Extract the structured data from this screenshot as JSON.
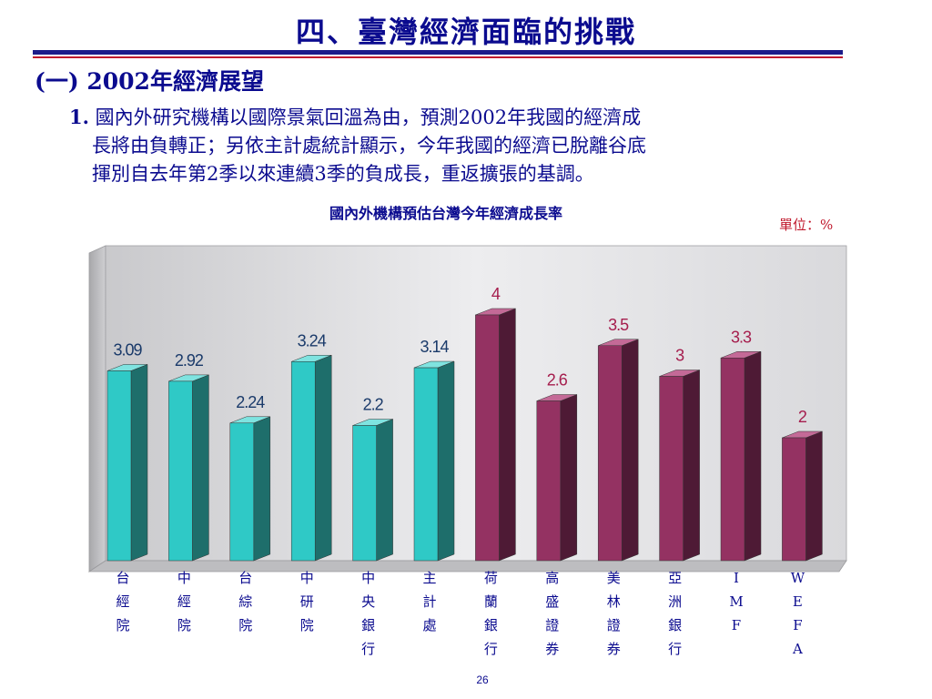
{
  "slide": {
    "title": "四、臺灣經濟面臨的挑戰",
    "section": "(一) 2002年經濟展望",
    "paragraph": {
      "number": "1.",
      "lines": [
        "國內外研究機構以國際景氣回溫為由，預測2002年我國的經濟成",
        "長將由負轉正；另依主計處統計顯示，今年我國的經濟已脫離谷底",
        "揮別自去年第2季以來連續3季的負成長，重返擴張的基調。"
      ]
    },
    "page_number": "26"
  },
  "chart_data": {
    "type": "bar",
    "title": "國內外機構預估台灣今年經濟成長率",
    "unit_label": "單位：%",
    "categories": [
      "台經院",
      "中經院",
      "台綜院",
      "中研院",
      "中央銀行",
      "主計處",
      "荷蘭銀行",
      "高盛證券",
      "美林證券",
      "亞洲銀行",
      "IMF",
      "WEFA"
    ],
    "values": [
      3.09,
      2.92,
      2.24,
      3.24,
      2.2,
      3.14,
      4,
      2.6,
      3.5,
      3,
      3.3,
      2
    ],
    "value_labels": [
      "3.09",
      "2.92",
      "2.24",
      "3.24",
      "2.2",
      "3.14",
      "4",
      "2.6",
      "3.5",
      "3",
      "3.3",
      "2"
    ],
    "groups": [
      "domestic",
      "domestic",
      "domestic",
      "domestic",
      "domestic",
      "domestic",
      "foreign",
      "foreign",
      "foreign",
      "foreign",
      "foreign",
      "foreign"
    ],
    "colors": {
      "domestic_front": "#2fc9c6",
      "domestic_side": "#1e6e6b",
      "domestic_top": "#7fe3e0",
      "domestic_label": "#1a3a6a",
      "foreign_front": "#943262",
      "foreign_side": "#4e1a35",
      "foreign_top": "#c46a97",
      "foreign_label": "#a51d4d",
      "category_text": "#0b0b8f"
    },
    "ylim": [
      0,
      4.5
    ],
    "grid": false,
    "legend": "none"
  }
}
